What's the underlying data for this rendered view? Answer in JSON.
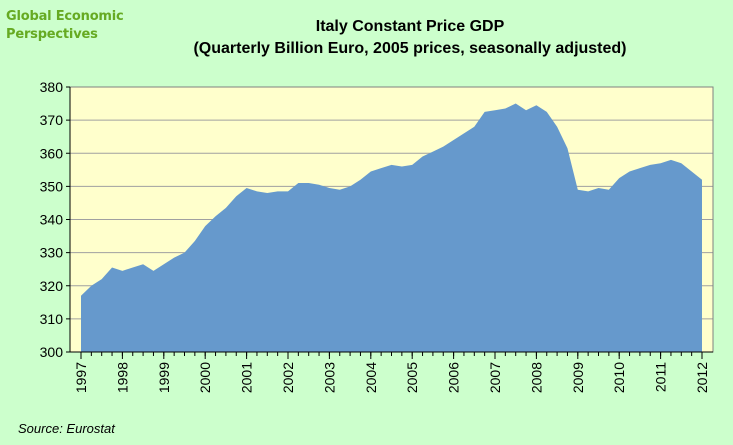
{
  "brand": {
    "line1": "Global Economic",
    "line2": "Perspectives"
  },
  "title": {
    "line1": "Italy Constant Price GDP",
    "line2": "(Quarterly Billion  Euro, 2005 prices, seasonally adjusted)"
  },
  "source": "Source: Eurostat",
  "colors": {
    "background": "#ccffcc",
    "plot_background": "#ffffcc",
    "area_fill": "#6699cc",
    "grid": "#a0a0a0"
  },
  "chart_data": {
    "type": "area",
    "title": "Italy Constant Price GDP (Quarterly Billion  Euro, 2005 prices, seasonally adjusted)",
    "xlabel": "",
    "ylabel": "",
    "ylim": [
      300,
      380
    ],
    "yticks": [
      300,
      310,
      320,
      330,
      340,
      350,
      360,
      370,
      380
    ],
    "xtick_labels": [
      "1997",
      "1998",
      "1999",
      "2000",
      "2001",
      "2002",
      "2003",
      "2004",
      "2005",
      "2006",
      "2007",
      "2008",
      "2009",
      "2010",
      "2011",
      "2012"
    ],
    "grid": true,
    "series": [
      {
        "values": [
          317,
          320,
          322,
          325.5,
          324.5,
          325.5,
          326.5,
          324.5,
          326.5,
          328.5,
          330,
          333.5,
          338,
          341,
          343.5,
          347,
          349.5,
          348.5,
          348,
          348.5,
          348.5,
          351,
          351,
          350.5,
          349.5,
          349,
          350,
          352,
          354.5,
          355.5,
          356.5,
          356,
          356.5,
          359,
          360.5,
          362,
          364,
          366,
          368,
          372.5,
          373,
          373.5,
          375,
          373,
          374.5,
          372.5,
          368,
          361.5,
          349,
          348.5,
          349.5,
          349,
          352.5,
          354.5,
          355.5,
          356.5,
          357,
          358,
          357,
          354.5,
          352
        ]
      }
    ]
  }
}
